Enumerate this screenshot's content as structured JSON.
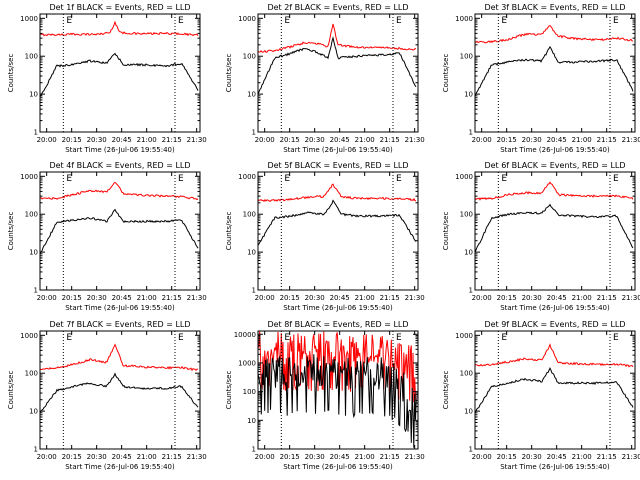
{
  "figure": {
    "colors": {
      "events": "#000000",
      "lld": "#ff0000",
      "axes": "#000000",
      "background": "#ffffff"
    }
  },
  "chart_data": [
    {
      "type": "line",
      "title": "Det 1f BLACK = Events, RED = LLD",
      "xlabel": "Start Time (26-Jul-06 19:55:40)",
      "ylabel": "Counts/sec",
      "x_ticks": [
        "20:00",
        "20:15",
        "20:30",
        "20:45",
        "21:00",
        "21:15",
        "21:30"
      ],
      "x_range_minutes": [
        0,
        96
      ],
      "y_scale": "log",
      "y_ticks": [
        "1",
        "10",
        "100",
        "1000"
      ],
      "ylim": [
        1,
        1300
      ],
      "markers": [
        "E",
        "E"
      ],
      "vlines_time": [
        "20:10",
        "21:17"
      ],
      "series": [
        {
          "name": "LLD",
          "color": "#ff0000",
          "x_minutes": [
            0,
            10,
            20,
            35,
            42,
            45,
            48,
            60,
            75,
            85,
            95
          ],
          "values": [
            370,
            370,
            380,
            380,
            420,
            780,
            420,
            390,
            400,
            390,
            360
          ]
        },
        {
          "name": "Events",
          "color": "#000000",
          "x_minutes": [
            0,
            10,
            20,
            30,
            40,
            45,
            50,
            60,
            75,
            85,
            95
          ],
          "values": [
            8,
            55,
            60,
            75,
            65,
            120,
            60,
            60,
            55,
            65,
            12
          ]
        }
      ]
    },
    {
      "type": "line",
      "title": "Det 2f BLACK = Events, RED = LLD",
      "xlabel": "Start Time (26-Jul-06 19:55:40)",
      "ylabel": "Counts/sec",
      "x_ticks": [
        "20:00",
        "20:15",
        "20:30",
        "20:45",
        "21:00",
        "21:15",
        "21:30"
      ],
      "x_range_minutes": [
        0,
        96
      ],
      "y_scale": "log",
      "y_ticks": [
        "1",
        "10",
        "100",
        "1000"
      ],
      "ylim": [
        1,
        1300
      ],
      "markers": [
        "E",
        "E"
      ],
      "vlines_time": [
        "20:10",
        "21:17"
      ],
      "series": [
        {
          "name": "LLD",
          "color": "#ff0000",
          "x_minutes": [
            0,
            10,
            20,
            28,
            35,
            42,
            45,
            48,
            60,
            75,
            85,
            95
          ],
          "values": [
            130,
            140,
            180,
            230,
            220,
            180,
            700,
            200,
            170,
            170,
            160,
            150
          ]
        },
        {
          "name": "Events",
          "color": "#000000",
          "x_minutes": [
            0,
            10,
            20,
            28,
            35,
            42,
            45,
            48,
            60,
            75,
            85,
            95
          ],
          "values": [
            10,
            90,
            120,
            160,
            130,
            90,
            300,
            90,
            100,
            110,
            120,
            15
          ]
        }
      ]
    },
    {
      "type": "line",
      "title": "Det 3f BLACK = Events, RED = LLD",
      "xlabel": "Start Time (26-Jul-06 19:55:40)",
      "ylabel": "Counts/sec",
      "x_ticks": [
        "20:00",
        "20:15",
        "20:30",
        "20:45",
        "21:00",
        "21:15",
        "21:30"
      ],
      "x_range_minutes": [
        0,
        96
      ],
      "y_scale": "log",
      "y_ticks": [
        "1",
        "10",
        "100",
        "1000"
      ],
      "ylim": [
        1,
        1300
      ],
      "markers": [
        "E",
        "E"
      ],
      "vlines_time": [
        "20:10",
        "21:17"
      ],
      "series": [
        {
          "name": "LLD",
          "color": "#ff0000",
          "x_minutes": [
            0,
            10,
            20,
            30,
            40,
            45,
            50,
            60,
            75,
            85,
            95
          ],
          "values": [
            240,
            240,
            280,
            380,
            380,
            630,
            340,
            290,
            270,
            300,
            260
          ]
        },
        {
          "name": "Events",
          "color": "#000000",
          "x_minutes": [
            0,
            10,
            20,
            30,
            40,
            45,
            50,
            60,
            75,
            85,
            95
          ],
          "values": [
            9,
            60,
            70,
            80,
            75,
            170,
            70,
            70,
            75,
            80,
            12
          ]
        }
      ]
    },
    {
      "type": "line",
      "title": "Det 4f BLACK = Events, RED = LLD",
      "xlabel": "Start Time (26-Jul-06 19:55:40)",
      "ylabel": "Counts/sec",
      "x_ticks": [
        "20:00",
        "20:15",
        "20:30",
        "20:45",
        "21:00",
        "21:15",
        "21:30"
      ],
      "x_range_minutes": [
        0,
        96
      ],
      "y_scale": "log",
      "y_ticks": [
        "1",
        "10",
        "100",
        "1000"
      ],
      "ylim": [
        1,
        1300
      ],
      "markers": [
        "E",
        "E"
      ],
      "vlines_time": [
        "20:10",
        "21:17"
      ],
      "series": [
        {
          "name": "LLD",
          "color": "#ff0000",
          "x_minutes": [
            0,
            10,
            20,
            30,
            40,
            45,
            50,
            60,
            75,
            85,
            95
          ],
          "values": [
            260,
            260,
            330,
            420,
            380,
            720,
            350,
            320,
            300,
            290,
            250
          ]
        },
        {
          "name": "Events",
          "color": "#000000",
          "x_minutes": [
            0,
            10,
            20,
            30,
            40,
            45,
            50,
            60,
            75,
            85,
            95
          ],
          "values": [
            9,
            60,
            70,
            80,
            65,
            130,
            65,
            65,
            65,
            70,
            12
          ]
        }
      ]
    },
    {
      "type": "line",
      "title": "Det 5f BLACK = Events, RED = LLD",
      "xlabel": "Start Time (26-Jul-06 19:55:40)",
      "ylabel": "Counts/sec",
      "x_ticks": [
        "20:00",
        "20:15",
        "20:30",
        "20:45",
        "21:00",
        "21:15",
        "21:30"
      ],
      "x_range_minutes": [
        0,
        96
      ],
      "y_scale": "log",
      "y_ticks": [
        "1",
        "10",
        "100",
        "1000"
      ],
      "ylim": [
        1,
        1300
      ],
      "markers": [
        "E",
        "E"
      ],
      "vlines_time": [
        "20:10",
        "21:17"
      ],
      "series": [
        {
          "name": "LLD",
          "color": "#ff0000",
          "x_minutes": [
            0,
            10,
            20,
            30,
            40,
            45,
            50,
            60,
            75,
            85,
            95
          ],
          "values": [
            230,
            230,
            250,
            280,
            300,
            620,
            290,
            260,
            260,
            260,
            240
          ]
        },
        {
          "name": "Events",
          "color": "#000000",
          "x_minutes": [
            0,
            10,
            20,
            30,
            40,
            45,
            50,
            60,
            75,
            85,
            95
          ],
          "values": [
            15,
            80,
            90,
            110,
            100,
            220,
            100,
            90,
            90,
            95,
            18
          ]
        }
      ]
    },
    {
      "type": "line",
      "title": "Det 6f BLACK = Events, RED = LLD",
      "xlabel": "Start Time (26-Jul-06 19:55:40)",
      "ylabel": "Counts/sec",
      "x_ticks": [
        "20:00",
        "20:15",
        "20:30",
        "20:45",
        "21:00",
        "21:15",
        "21:30"
      ],
      "x_range_minutes": [
        0,
        96
      ],
      "y_scale": "log",
      "y_ticks": [
        "1",
        "10",
        "100",
        "1000"
      ],
      "ylim": [
        1,
        1300
      ],
      "markers": [
        "E",
        "E"
      ],
      "vlines_time": [
        "20:10",
        "21:17"
      ],
      "series": [
        {
          "name": "LLD",
          "color": "#ff0000",
          "x_minutes": [
            0,
            10,
            20,
            30,
            40,
            45,
            50,
            60,
            75,
            85,
            95
          ],
          "values": [
            250,
            260,
            330,
            370,
            360,
            720,
            330,
            310,
            300,
            300,
            260
          ]
        },
        {
          "name": "Events",
          "color": "#000000",
          "x_minutes": [
            0,
            10,
            20,
            30,
            40,
            45,
            50,
            60,
            75,
            85,
            95
          ],
          "values": [
            10,
            80,
            100,
            110,
            105,
            180,
            95,
            90,
            85,
            90,
            12
          ]
        }
      ]
    },
    {
      "type": "line",
      "title": "Det 7f BLACK = Events, RED = LLD",
      "xlabel": "Start Time (26-Jul-06 19:55:40)",
      "ylabel": "Counts/sec",
      "x_ticks": [
        "20:00",
        "20:15",
        "20:30",
        "20:45",
        "21:00",
        "21:15",
        "21:30"
      ],
      "x_range_minutes": [
        0,
        96
      ],
      "y_scale": "log",
      "y_ticks": [
        "1",
        "10",
        "100",
        "1000"
      ],
      "ylim": [
        1,
        1300
      ],
      "markers": [
        "E",
        "E"
      ],
      "vlines_time": [
        "20:10",
        "21:17"
      ],
      "series": [
        {
          "name": "LLD",
          "color": "#ff0000",
          "x_minutes": [
            0,
            10,
            20,
            30,
            40,
            45,
            50,
            60,
            75,
            85,
            95
          ],
          "values": [
            130,
            140,
            170,
            230,
            190,
            580,
            160,
            150,
            140,
            140,
            120
          ]
        },
        {
          "name": "Events",
          "color": "#000000",
          "x_minutes": [
            0,
            10,
            20,
            30,
            40,
            45,
            50,
            60,
            75,
            85,
            95
          ],
          "values": [
            9,
            35,
            45,
            55,
            45,
            95,
            45,
            40,
            40,
            45,
            12
          ]
        }
      ]
    },
    {
      "type": "line",
      "title": "Det 8f BLACK = Events, RED = LLD",
      "xlabel": "Start Time (26-Jul-06 19:55:40)",
      "ylabel": "Counts/sec",
      "x_ticks": [
        "20:00",
        "20:15",
        "20:30",
        "20:45",
        "21:00",
        "21:15",
        "21:30"
      ],
      "x_range_minutes": [
        0,
        96
      ],
      "y_scale": "log",
      "y_ticks": [
        "1",
        "10",
        "100",
        "1000",
        "10000"
      ],
      "ylim": [
        1,
        13000
      ],
      "markers": [
        "E",
        "E"
      ],
      "vlines_time": [
        "20:10",
        "21:17"
      ],
      "series": [
        {
          "name": "LLD",
          "color": "#ff0000",
          "noisy": true,
          "x_minutes": [
            0,
            10,
            20,
            30,
            40,
            50,
            60,
            70,
            80,
            88,
            95
          ],
          "values": [
            3000,
            2600,
            2800,
            2500,
            2600,
            2400,
            2500,
            2200,
            1800,
            800,
            1000
          ]
        },
        {
          "name": "Events",
          "color": "#000000",
          "noisy": true,
          "x_minutes": [
            0,
            10,
            20,
            30,
            40,
            50,
            60,
            70,
            80,
            88,
            95
          ],
          "values": [
            400,
            380,
            350,
            420,
            380,
            300,
            350,
            380,
            250,
            120,
            15
          ]
        }
      ]
    },
    {
      "type": "line",
      "title": "Det 9f BLACK = Events, RED = LLD",
      "xlabel": "Start Time (26-Jul-06 19:55:40)",
      "ylabel": "Counts/sec",
      "x_ticks": [
        "20:00",
        "20:15",
        "20:30",
        "20:45",
        "21:00",
        "21:15",
        "21:30"
      ],
      "x_range_minutes": [
        0,
        96
      ],
      "y_scale": "log",
      "y_ticks": [
        "1",
        "10",
        "100",
        "1000"
      ],
      "ylim": [
        1,
        1300
      ],
      "markers": [
        "E",
        "E"
      ],
      "vlines_time": [
        "20:10",
        "21:17"
      ],
      "series": [
        {
          "name": "LLD",
          "color": "#ff0000",
          "x_minutes": [
            0,
            10,
            20,
            30,
            40,
            45,
            50,
            60,
            75,
            85,
            95
          ],
          "values": [
            160,
            170,
            200,
            240,
            220,
            550,
            190,
            180,
            170,
            175,
            150
          ]
        },
        {
          "name": "Events",
          "color": "#000000",
          "x_minutes": [
            0,
            10,
            20,
            30,
            40,
            45,
            50,
            60,
            75,
            85,
            95
          ],
          "values": [
            9,
            45,
            55,
            70,
            60,
            130,
            55,
            55,
            55,
            60,
            12
          ]
        }
      ]
    }
  ]
}
